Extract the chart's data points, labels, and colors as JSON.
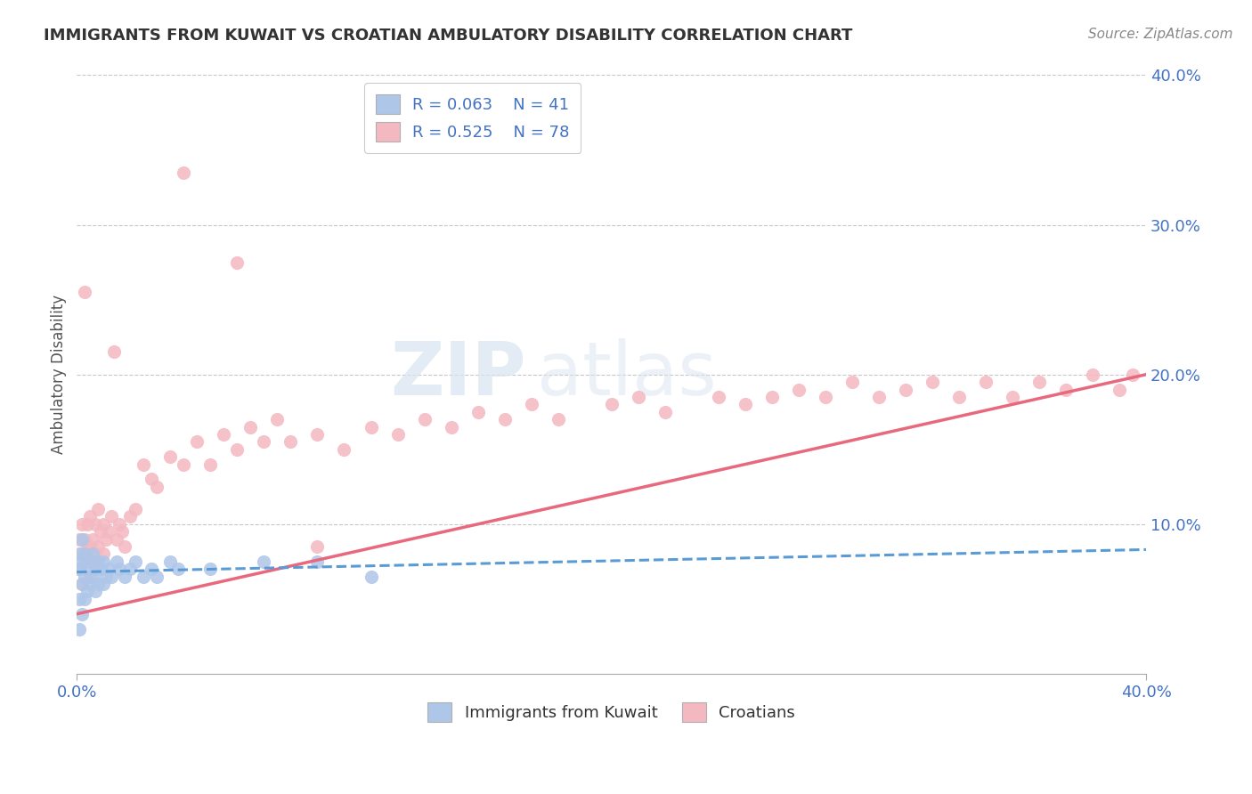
{
  "title": "IMMIGRANTS FROM KUWAIT VS CROATIAN AMBULATORY DISABILITY CORRELATION CHART",
  "source": "Source: ZipAtlas.com",
  "ylabel": "Ambulatory Disability",
  "xlim": [
    0.0,
    0.4
  ],
  "ylim": [
    0.0,
    0.4
  ],
  "series1_label": "Immigrants from Kuwait",
  "series1_R": "0.063",
  "series1_N": "41",
  "series1_color": "#aec6e8",
  "series1_line_color": "#5b9bd5",
  "series2_label": "Croatians",
  "series2_R": "0.525",
  "series2_N": "78",
  "series2_color": "#f4b8c1",
  "series2_line_color": "#e8697d",
  "background_color": "#ffffff",
  "kuwait_x": [
    0.001,
    0.001,
    0.001,
    0.001,
    0.002,
    0.002,
    0.002,
    0.002,
    0.003,
    0.003,
    0.003,
    0.004,
    0.004,
    0.005,
    0.005,
    0.006,
    0.006,
    0.007,
    0.007,
    0.008,
    0.008,
    0.009,
    0.01,
    0.01,
    0.011,
    0.012,
    0.013,
    0.015,
    0.016,
    0.018,
    0.02,
    0.022,
    0.025,
    0.028,
    0.03,
    0.035,
    0.038,
    0.05,
    0.07,
    0.09,
    0.11
  ],
  "kuwait_y": [
    0.03,
    0.05,
    0.07,
    0.08,
    0.04,
    0.06,
    0.075,
    0.09,
    0.05,
    0.065,
    0.08,
    0.055,
    0.07,
    0.06,
    0.075,
    0.065,
    0.08,
    0.055,
    0.07,
    0.06,
    0.075,
    0.07,
    0.06,
    0.075,
    0.065,
    0.07,
    0.065,
    0.075,
    0.07,
    0.065,
    0.07,
    0.075,
    0.065,
    0.07,
    0.065,
    0.075,
    0.07,
    0.07,
    0.075,
    0.075,
    0.065
  ],
  "croatian_x": [
    0.001,
    0.001,
    0.002,
    0.002,
    0.002,
    0.003,
    0.003,
    0.003,
    0.004,
    0.004,
    0.005,
    0.005,
    0.005,
    0.006,
    0.006,
    0.007,
    0.007,
    0.008,
    0.008,
    0.009,
    0.01,
    0.01,
    0.011,
    0.012,
    0.013,
    0.014,
    0.015,
    0.016,
    0.017,
    0.018,
    0.02,
    0.022,
    0.025,
    0.028,
    0.03,
    0.035,
    0.04,
    0.045,
    0.05,
    0.055,
    0.06,
    0.065,
    0.07,
    0.075,
    0.08,
    0.09,
    0.1,
    0.11,
    0.12,
    0.13,
    0.14,
    0.15,
    0.16,
    0.17,
    0.18,
    0.2,
    0.21,
    0.22,
    0.24,
    0.25,
    0.26,
    0.27,
    0.28,
    0.29,
    0.3,
    0.31,
    0.32,
    0.33,
    0.34,
    0.35,
    0.36,
    0.37,
    0.38,
    0.39,
    0.395,
    0.04,
    0.06,
    0.09
  ],
  "croatian_y": [
    0.07,
    0.09,
    0.06,
    0.08,
    0.1,
    0.075,
    0.09,
    0.255,
    0.085,
    0.1,
    0.065,
    0.085,
    0.105,
    0.075,
    0.09,
    0.08,
    0.1,
    0.085,
    0.11,
    0.095,
    0.08,
    0.1,
    0.09,
    0.095,
    0.105,
    0.215,
    0.09,
    0.1,
    0.095,
    0.085,
    0.105,
    0.11,
    0.14,
    0.13,
    0.125,
    0.145,
    0.14,
    0.155,
    0.14,
    0.16,
    0.15,
    0.165,
    0.155,
    0.17,
    0.155,
    0.16,
    0.15,
    0.165,
    0.16,
    0.17,
    0.165,
    0.175,
    0.17,
    0.18,
    0.17,
    0.18,
    0.185,
    0.175,
    0.185,
    0.18,
    0.185,
    0.19,
    0.185,
    0.195,
    0.185,
    0.19,
    0.195,
    0.185,
    0.195,
    0.185,
    0.195,
    0.19,
    0.2,
    0.19,
    0.2,
    0.335,
    0.275,
    0.085
  ],
  "croatian_line_x0": 0.0,
  "croatian_line_y0": 0.04,
  "croatian_line_x1": 0.4,
  "croatian_line_y1": 0.2,
  "kuwait_line_x0": 0.0,
  "kuwait_line_y0": 0.068,
  "kuwait_line_x1": 0.4,
  "kuwait_line_y1": 0.083
}
